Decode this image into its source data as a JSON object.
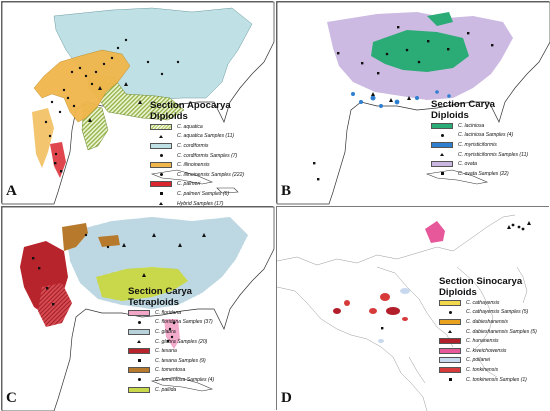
{
  "panels": [
    {
      "letter": "A",
      "title_lines": [
        "Section Apocarya",
        "Diploids"
      ],
      "legend": [
        {
          "label": "C. aquatica",
          "kind": "swatch",
          "style": "hatch-green",
          "color": "#b6cf6a"
        },
        {
          "label": "C. aquatica Samples (11)",
          "kind": "marker",
          "marker": "tri"
        },
        {
          "label": "C. cordiformis",
          "kind": "swatch",
          "color": "#bfe0e4"
        },
        {
          "label": "C. cordiformis Samples (7)",
          "kind": "marker",
          "marker": "dot"
        },
        {
          "label": "C. illinoinensis",
          "kind": "swatch",
          "color": "#f0b64b"
        },
        {
          "label": "C. illinoinensis Samples (222)",
          "kind": "marker",
          "marker": "dot"
        },
        {
          "label": "C. palmeri",
          "kind": "swatch",
          "color": "#d9262e"
        },
        {
          "label": "C. palmeri Samples (6)",
          "kind": "marker",
          "marker": "sq"
        },
        {
          "label": "Hybrid Samples (17)",
          "kind": "marker",
          "marker": "tri"
        }
      ]
    },
    {
      "letter": "B",
      "title_lines": [
        "Section Carya",
        "Diploids"
      ],
      "legend": [
        {
          "label": "C. laciniosa",
          "kind": "swatch",
          "color": "#2bab75"
        },
        {
          "label": "C. laciniosa Samples (4)",
          "kind": "marker",
          "marker": "dot"
        },
        {
          "label": "C. myristiciformis",
          "kind": "swatch",
          "color": "#2f7fd0"
        },
        {
          "label": "C. myristiciformis Samples (11)",
          "kind": "marker",
          "marker": "tri"
        },
        {
          "label": "C. ovata",
          "kind": "swatch",
          "color": "#c9b6e1"
        },
        {
          "label": "C. ovata Samples (22)",
          "kind": "marker",
          "marker": "sq"
        }
      ]
    },
    {
      "letter": "C",
      "title_lines": [
        "Section Carya",
        "Tetraploids"
      ],
      "legend": [
        {
          "label": "C. floridana",
          "kind": "swatch",
          "color": "#f2a7c8"
        },
        {
          "label": "C. floridana Samples (37)",
          "kind": "marker",
          "marker": "dot"
        },
        {
          "label": "C. glabra",
          "kind": "swatch",
          "style": "dots-lt",
          "color": "#c7e3ee"
        },
        {
          "label": "C. glabra Samples (20)",
          "kind": "marker",
          "marker": "tri"
        },
        {
          "label": "C. texana",
          "kind": "swatch",
          "color": "#b8242c"
        },
        {
          "label": "C. texana Samples (9)",
          "kind": "marker",
          "marker": "sq"
        },
        {
          "label": "C. tomentosa",
          "kind": "swatch",
          "color": "#b77a2d"
        },
        {
          "label": "C. tomentosa Samples (4)",
          "kind": "marker",
          "marker": "dot"
        },
        {
          "label": "C. pallida",
          "kind": "swatch",
          "color": "#c9d84a"
        }
      ]
    },
    {
      "letter": "D",
      "title_lines": [
        "Section Sinocarya",
        "Diploids"
      ],
      "legend": [
        {
          "label": "C. cathayensis",
          "kind": "swatch",
          "color": "#f1d84a"
        },
        {
          "label": "C. cathayensis Samples (5)",
          "kind": "marker",
          "marker": "dot"
        },
        {
          "label": "C. dabieshanensis",
          "kind": "swatch",
          "color": "#e8a21f"
        },
        {
          "label": "C. dabieshanensis Samples (5)",
          "kind": "marker",
          "marker": "tri"
        },
        {
          "label": "C. hunanensis",
          "kind": "swatch",
          "color": "#b21e2a"
        },
        {
          "label": "C. kweichowensis",
          "kind": "swatch",
          "color": "#e7589a"
        },
        {
          "label": "C. poilanei",
          "kind": "swatch",
          "color": "#c8d8ee"
        },
        {
          "label": "C. tonkinensis",
          "kind": "swatch",
          "color": "#d73a3a"
        },
        {
          "label": "C. tonkinensis Samples (1)",
          "kind": "marker",
          "marker": "sq"
        }
      ]
    }
  ]
}
